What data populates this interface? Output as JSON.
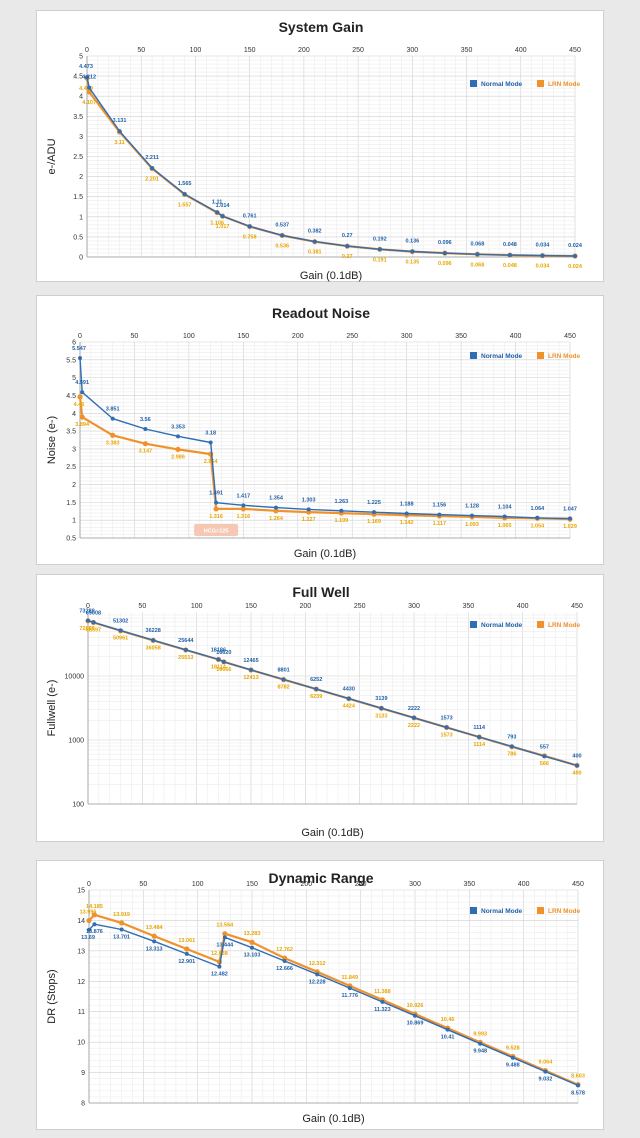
{
  "colors": {
    "normal": "#2f6db5",
    "lrn": "#f0922b",
    "normal_label": "#1f5fa8",
    "lrn_label": "#e8a600",
    "hcg_badge": "#f6c8b3"
  },
  "chart_data": [
    {
      "type": "line",
      "title": "System Gain",
      "xlabel": "Gain (0.1dB)",
      "ylabel": "e-/ADU",
      "xlim": [
        0,
        450
      ],
      "ylim": [
        0,
        5
      ],
      "xticks": [
        "0",
        "50",
        "100",
        "150",
        "200",
        "250",
        "300",
        "350",
        "400",
        "450"
      ],
      "yticks": [
        "0",
        "0.5",
        "1",
        "1.5",
        "2",
        "2.5",
        "3",
        "3.5",
        "4",
        "4.5",
        "5"
      ],
      "grid": true,
      "legend": "top-right",
      "series": [
        {
          "name": "Normal Mode",
          "x": [
            0,
            2,
            30,
            60,
            90,
            120,
            125,
            150,
            180,
            210,
            240,
            270,
            300,
            330,
            360,
            390,
            420,
            450
          ],
          "y": [
            4.473,
            4.212,
            3.131,
            2.211,
            1.565,
            1.11,
            1.014,
            0.761,
            0.537,
            0.382,
            0.27,
            0.192,
            0.136,
            0.096,
            0.068,
            0.048,
            0.034,
            0.024
          ],
          "labels": [
            "4.473",
            "4.212",
            "3.131",
            "2.211",
            "1.565",
            "1.11",
            "1.014",
            "0.761",
            "0.537",
            "0.382",
            "0.27",
            "0.192",
            "0.136",
            "0.096",
            "0.068",
            "0.048",
            "0.034",
            "0.024"
          ]
        },
        {
          "name": "LRN Mode",
          "x": [
            0,
            2,
            30,
            60,
            90,
            120,
            125,
            150,
            180,
            210,
            240,
            270,
            300,
            330,
            360,
            390,
            420,
            450
          ],
          "y": [
            4.449,
            4.107,
            3.11,
            2.201,
            1.557,
            1.106,
            1.017,
            0.758,
            0.536,
            0.381,
            0.27,
            0.191,
            0.135,
            0.096,
            0.068,
            0.048,
            0.034,
            0.024
          ],
          "labels": [
            "4.449",
            "4.107",
            "3.11",
            "2.201",
            "1.557",
            "1.106",
            "1.017",
            "0.758",
            "0.536",
            "0.381",
            "0.27",
            "0.191",
            "0.135",
            "0.096",
            "0.068",
            "0.048",
            "0.034",
            "0.024"
          ]
        }
      ]
    },
    {
      "type": "line",
      "title": "Readout Noise",
      "xlabel": "Gain (0.1dB)",
      "ylabel": "Noise (e-)",
      "xlim": [
        0,
        450
      ],
      "ylim": [
        0.5,
        6
      ],
      "xticks": [
        "0",
        "50",
        "100",
        "150",
        "200",
        "250",
        "300",
        "350",
        "400",
        "450"
      ],
      "yticks": [
        "0.5",
        "1",
        "1.5",
        "2",
        "2.5",
        "3",
        "3.5",
        "4",
        "4.5",
        "5",
        "5.5",
        "6"
      ],
      "grid": true,
      "legend": "top-right",
      "annotation": "HCG=125",
      "series": [
        {
          "name": "Normal Mode",
          "x": [
            0,
            2,
            30,
            60,
            90,
            120,
            125,
            150,
            180,
            210,
            240,
            270,
            300,
            330,
            360,
            390,
            420,
            450
          ],
          "y": [
            5.547,
            4.591,
            3.851,
            3.56,
            3.353,
            3.18,
            1.491,
            1.417,
            1.354,
            1.303,
            1.263,
            1.225,
            1.188,
            1.156,
            1.128,
            1.104,
            1.064,
            1.047
          ],
          "labels": [
            "5.547",
            "4.591",
            "3.851",
            "3.56",
            "3.353",
            "3.18",
            "1.491",
            "1.417",
            "1.354",
            "1.303",
            "1.263",
            "1.225",
            "1.188",
            "1.156",
            "1.128",
            "1.104",
            "1.064",
            "1.047"
          ]
        },
        {
          "name": "LRN Mode",
          "x": [
            0,
            2,
            30,
            60,
            90,
            120,
            125,
            150,
            180,
            210,
            240,
            270,
            300,
            330,
            360,
            390,
            420,
            450
          ],
          "y": [
            4.46,
            3.894,
            3.383,
            3.147,
            2.986,
            2.854,
            1.316,
            1.316,
            1.264,
            1.227,
            1.199,
            1.169,
            1.142,
            1.117,
            1.093,
            1.065,
            1.054,
            1.029
          ],
          "labels": [
            "4.46",
            "3.894",
            "3.383",
            "3.147",
            "2.986",
            "2.854",
            "1.316",
            "1.316",
            "1.264",
            "1.227",
            "1.199",
            "1.169",
            "1.142",
            "1.117",
            "1.093",
            "1.065",
            "1.054",
            "1.029"
          ]
        }
      ]
    },
    {
      "type": "line",
      "title": "Full Well",
      "xlabel": "Gain (0.1dB)",
      "ylabel": "Fullwell (e-)",
      "xlim": [
        0,
        450
      ],
      "ylim": [
        100,
        100000
      ],
      "yscale": "log",
      "xticks": [
        "0",
        "50",
        "100",
        "150",
        "200",
        "250",
        "300",
        "350",
        "400",
        "450"
      ],
      "yticks": [
        "100",
        "1000",
        "10000"
      ],
      "grid": true,
      "legend": "top-right",
      "series": [
        {
          "name": "Normal Mode",
          "x": [
            0,
            5,
            30,
            60,
            90,
            120,
            125,
            150,
            180,
            210,
            240,
            270,
            300,
            330,
            360,
            390,
            420,
            450
          ],
          "y": [
            73289,
            69008,
            51302,
            36228,
            25644,
            18186,
            16620,
            12465,
            8801,
            6252,
            4430,
            3139,
            2222,
            1573,
            1114,
            793,
            557,
            400
          ],
          "labels": [
            "73289",
            "69008",
            "51302",
            "36228",
            "25644",
            "18186",
            "16620",
            "12465",
            "8801",
            "6252",
            "4430",
            "3139",
            "2222",
            "1573",
            "1114",
            "793",
            "557",
            "400"
          ]
        },
        {
          "name": "LRN Mode",
          "x": [
            0,
            5,
            30,
            60,
            90,
            120,
            125,
            150,
            180,
            210,
            240,
            270,
            300,
            330,
            360,
            390,
            420,
            450
          ],
          "y": [
            72889,
            68597,
            50961,
            36058,
            25513,
            18114,
            16666,
            12413,
            8782,
            6239,
            4424,
            3133,
            2222,
            1573,
            1114,
            786,
            566,
            400
          ],
          "labels": [
            "72889",
            "68597",
            "50961",
            "36058",
            "25513",
            "18114",
            "16666",
            "12413",
            "8782",
            "6239",
            "4424",
            "3133",
            "2222",
            "1573",
            "1114",
            "786",
            "566",
            "400"
          ]
        }
      ]
    },
    {
      "type": "line",
      "title": "Dynamic Range",
      "xlabel": "Gain (0.1dB)",
      "ylabel": "DR (Stops)",
      "xlim": [
        0,
        450
      ],
      "ylim": [
        8,
        15
      ],
      "xticks": [
        "0",
        "50",
        "100",
        "150",
        "200",
        "250",
        "300",
        "350",
        "400",
        "450"
      ],
      "yticks": [
        "8",
        "9",
        "10",
        "11",
        "12",
        "13",
        "14",
        "15"
      ],
      "grid": true,
      "legend": "top-right",
      "series": [
        {
          "name": "Normal Mode",
          "x": [
            0,
            5,
            30,
            60,
            90,
            120,
            125,
            150,
            180,
            210,
            240,
            270,
            300,
            330,
            360,
            390,
            420,
            450
          ],
          "y": [
            13.69,
            13.876,
            13.701,
            13.313,
            12.901,
            12.482,
            13.444,
            13.103,
            12.666,
            12.228,
            11.776,
            11.323,
            10.869,
            10.41,
            9.948,
            9.488,
            9.032,
            8.578
          ],
          "labels": [
            "13.69",
            "13.876",
            "13.701",
            "13.313",
            "12.901",
            "12.482",
            "13.444",
            "13.103",
            "12.666",
            "12.228",
            "11.776",
            "11.323",
            "10.869",
            "10.41",
            "9.948",
            "9.488",
            "9.032",
            "8.578"
          ]
        },
        {
          "name": "LRN Mode",
          "x": [
            0,
            5,
            30,
            60,
            90,
            120,
            125,
            150,
            180,
            210,
            240,
            270,
            300,
            330,
            360,
            390,
            420,
            450
          ],
          "y": [
            13.996,
            14.185,
            13.919,
            13.484,
            13.061,
            12.638,
            13.564,
            13.283,
            12.762,
            12.312,
            11.849,
            11.388,
            10.926,
            10.46,
            9.993,
            9.528,
            9.064,
            8.603
          ],
          "labels": [
            "13.996",
            "14.185",
            "13.919",
            "13.484",
            "13.061",
            "12.638",
            "13.564",
            "13.283",
            "12.762",
            "12.312",
            "11.849",
            "11.388",
            "10.926",
            "10.46",
            "9.993",
            "9.528",
            "9.064",
            "8.603"
          ]
        }
      ]
    }
  ]
}
